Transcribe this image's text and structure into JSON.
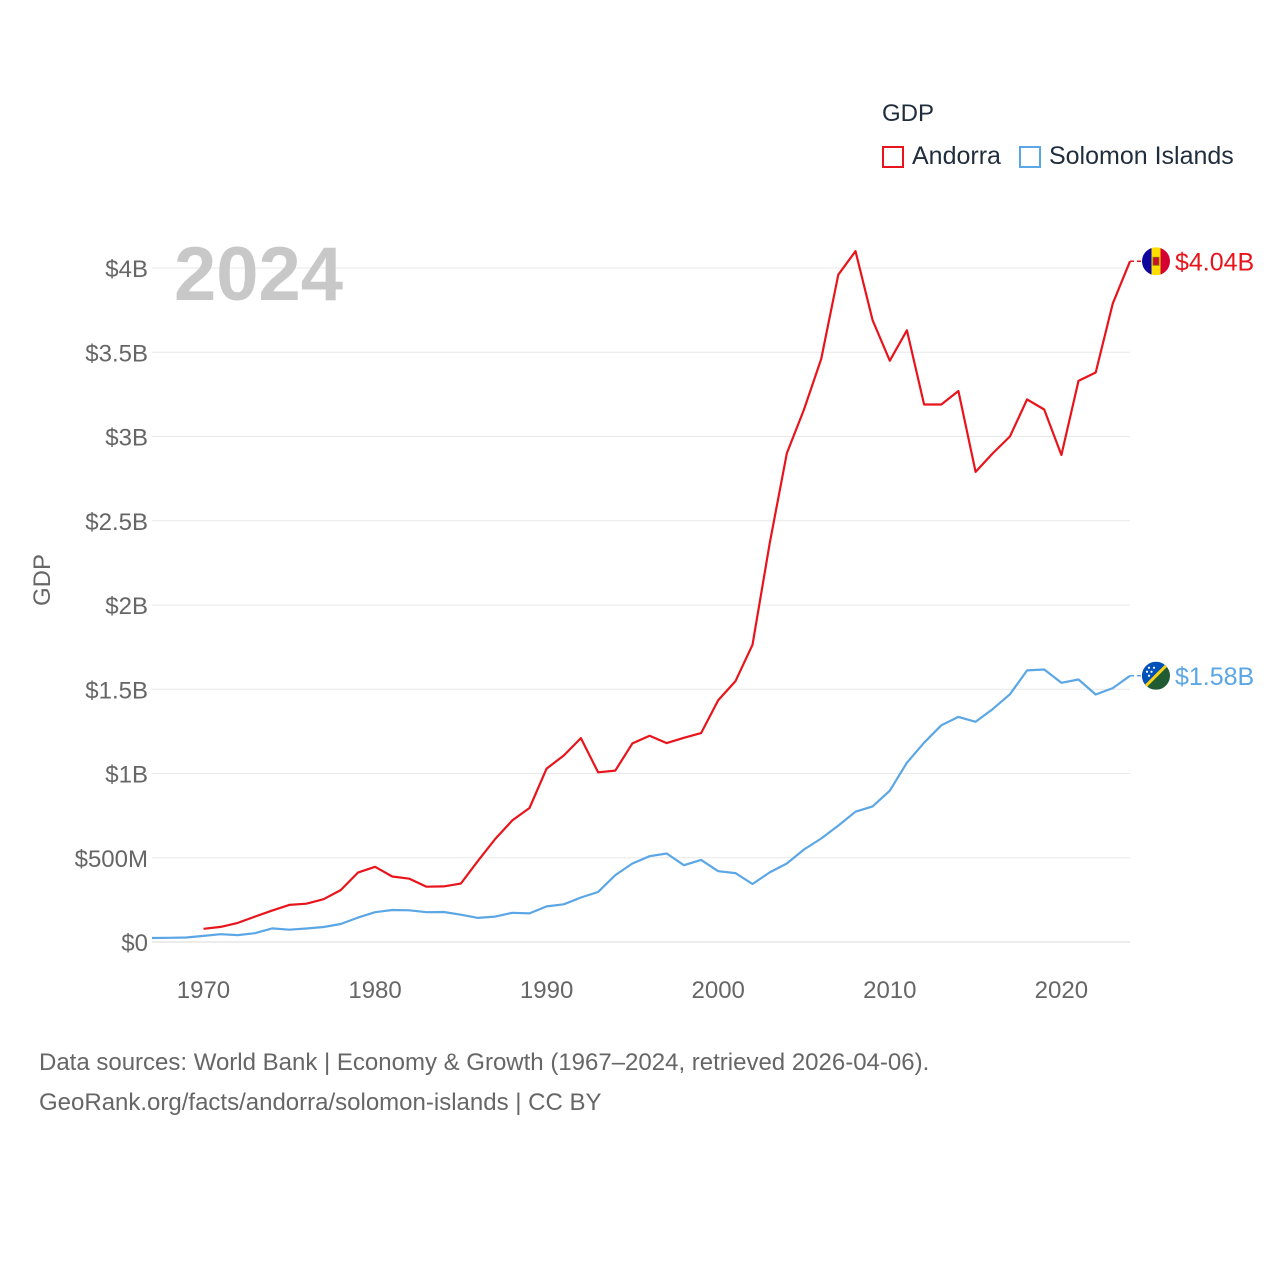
{
  "chart_data": {
    "type": "line",
    "year_label": "2024",
    "ylabel": "GDP",
    "xlim": [
      1967,
      2024
    ],
    "ylim": [
      0,
      4000000000
    ],
    "x_ticks": [
      {
        "value": 1970,
        "label": "1970"
      },
      {
        "value": 1980,
        "label": "1980"
      },
      {
        "value": 1990,
        "label": "1990"
      },
      {
        "value": 2000,
        "label": "2000"
      },
      {
        "value": 2010,
        "label": "2010"
      },
      {
        "value": 2020,
        "label": "2020"
      }
    ],
    "y_ticks": [
      {
        "value": 0,
        "label": "$0"
      },
      {
        "value": 500000000,
        "label": "$500M"
      },
      {
        "value": 1000000000,
        "label": "$1B"
      },
      {
        "value": 1500000000,
        "label": "$1.5B"
      },
      {
        "value": 2000000000,
        "label": "$2B"
      },
      {
        "value": 2500000000,
        "label": "$2.5B"
      },
      {
        "value": 3000000000,
        "label": "$3B"
      },
      {
        "value": 3500000000,
        "label": "$3.5B"
      },
      {
        "value": 4000000000,
        "label": "$4B"
      }
    ],
    "legend": {
      "title": "GDP",
      "position": "top-right"
    },
    "series": [
      {
        "name": "Andorra",
        "color": "#e8141c",
        "end_label": "$4.04B",
        "flag": "andorra-flag-icon",
        "years": [
          1970,
          1971,
          1972,
          1973,
          1974,
          1975,
          1976,
          1977,
          1978,
          1979,
          1980,
          1981,
          1982,
          1983,
          1984,
          1985,
          1986,
          1987,
          1988,
          1989,
          1990,
          1991,
          1992,
          1993,
          1994,
          1995,
          1996,
          1997,
          1998,
          1999,
          2000,
          2001,
          2002,
          2003,
          2004,
          2005,
          2006,
          2007,
          2008,
          2009,
          2010,
          2011,
          2012,
          2013,
          2014,
          2015,
          2016,
          2017,
          2018,
          2019,
          2020,
          2021,
          2022,
          2023,
          2024
        ],
        "values": [
          78600000,
          89400000,
          113400000,
          150800000,
          186600000,
          220100000,
          227300000,
          254000000,
          308300000,
          411600000,
          446400000,
          388900000,
          375900000,
          327900000,
          330100000,
          346700000,
          482000000,
          611300000,
          721400000,
          795400000,
          1029000000,
          1106900000,
          1210000000,
          1007000000,
          1017000000,
          1178700000,
          1224000000,
          1180600000,
          1211900000,
          1239900000,
          1434400000,
          1547000000,
          1764000000,
          2366000000,
          2900000000,
          3160000000,
          3460000000,
          3960000000,
          4100000000,
          3690000000,
          3450000000,
          3630000000,
          3190000000,
          3190000000,
          3270000000,
          2790000000,
          2900000000,
          3000000000,
          3220000000,
          3160000000,
          2890000000,
          3330000000,
          3380000000,
          3790000000,
          4040000000
        ]
      },
      {
        "name": "Solomon Islands",
        "color": "#5ba6e5",
        "end_label": "$1.58B",
        "flag": "solomon-islands-flag-icon",
        "years": [
          1967,
          1968,
          1969,
          1970,
          1971,
          1972,
          1973,
          1974,
          1975,
          1976,
          1977,
          1978,
          1979,
          1980,
          1981,
          1982,
          1983,
          1984,
          1985,
          1986,
          1987,
          1988,
          1989,
          1990,
          1991,
          1992,
          1993,
          1994,
          1995,
          1996,
          1997,
          1998,
          1999,
          2000,
          2001,
          2002,
          2003,
          2004,
          2005,
          2006,
          2007,
          2008,
          2009,
          2010,
          2011,
          2012,
          2013,
          2014,
          2015,
          2016,
          2017,
          2018,
          2019,
          2020,
          2021,
          2022,
          2023,
          2024
        ],
        "values": [
          24000000,
          25000000,
          27000000,
          36000000,
          46000000,
          41000000,
          52000000,
          81000000,
          73000000,
          80000000,
          89000000,
          107000000,
          145000000,
          177000000,
          190000000,
          188000000,
          177000000,
          178000000,
          162000000,
          143000000,
          151000000,
          173000000,
          170000000,
          211000000,
          224000000,
          264000000,
          297000000,
          397000000,
          466000000,
          509000000,
          525000000,
          456000000,
          487000000,
          420000000,
          409000000,
          344000000,
          413000000,
          466000000,
          549000000,
          614000000,
          691000000,
          773000000,
          805000000,
          898000000,
          1064000000,
          1183000000,
          1286000000,
          1336000000,
          1307000000,
          1382000000,
          1470000000,
          1612000000,
          1617000000,
          1538000000,
          1558000000,
          1469000000,
          1507000000,
          1580000000
        ]
      }
    ]
  },
  "source": {
    "line1": "Data sources: World Bank | Economy & Growth (1967–2024, retrieved 2026-04-06).",
    "line2": "GeoRank.org/facts/andorra/solomon-islands | CC BY"
  }
}
